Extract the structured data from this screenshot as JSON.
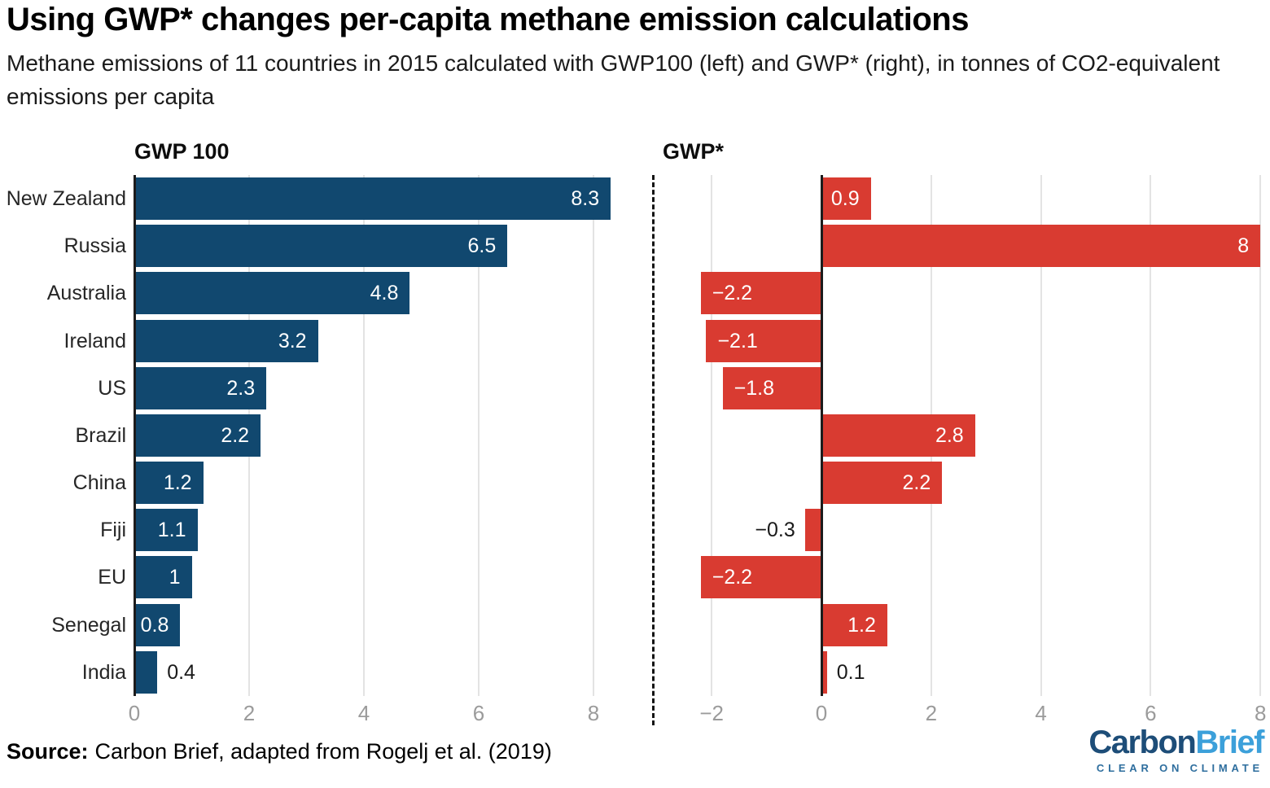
{
  "title": "Using GWP* changes per-capita methane emission calculations",
  "subtitle": "Methane emissions of 11 countries in 2015 calculated with GWP100 (left) and GWP* (right), in tonnes of CO2-equivalent emissions per capita",
  "source": {
    "label": "Source:",
    "text": "Carbon Brief, adapted from Rogelj et al. (2019)"
  },
  "logo": {
    "name_part1": "Carbon",
    "name_part2": "Brief",
    "tagline": "CLEAR ON CLIMATE"
  },
  "colors": {
    "bar_blue": "#11486F",
    "bar_red": "#D93B31",
    "axis_tick_gray": "#9B9B9B",
    "gridline": "#E3E3E3",
    "zero_axis": "#1C1C1C",
    "logo_navy": "#1D4D78",
    "logo_light_blue": "#3CA0DA",
    "logo_tagline": "#2E6E9E"
  },
  "chart_data": {
    "type": "bar",
    "orientation": "horizontal",
    "year": "2015",
    "unit": "tonnes of CO2-equivalent emissions per capita",
    "grid": true,
    "legend_position": "none",
    "categories": [
      "New Zealand",
      "Russia",
      "Australia",
      "Ireland",
      "US",
      "Brazil",
      "China",
      "Fiji",
      "EU",
      "Senegal",
      "India"
    ],
    "series": [
      {
        "name": "GWP 100",
        "color": "#11486F",
        "values": [
          8.3,
          6.5,
          4.8,
          3.2,
          2.3,
          2.2,
          1.2,
          1.1,
          1,
          0.8,
          0.4
        ],
        "labels": [
          "8.3",
          "6.5",
          "4.8",
          "3.2",
          "2.3",
          "2.2",
          "1.2",
          "1.1",
          "1",
          "0.8",
          "0.4"
        ],
        "axis_ticks": [
          0,
          2,
          4,
          6,
          8
        ],
        "xlim": [
          0,
          8.3
        ]
      },
      {
        "name": "GWP*",
        "color": "#D93B31",
        "values": [
          0.9,
          8,
          -2.2,
          -2.1,
          -1.8,
          2.8,
          2.2,
          -0.3,
          -2.2,
          1.2,
          0.1
        ],
        "labels": [
          "0.9",
          "8",
          "−2.2",
          "−2.1",
          "−1.8",
          "2.8",
          "2.2",
          "−0.3",
          "−2.2",
          "1.2",
          "0.1"
        ],
        "axis_ticks": [
          -2,
          0,
          2,
          4,
          6,
          8
        ],
        "xlim": [
          -3.05,
          8.05
        ]
      }
    ]
  }
}
